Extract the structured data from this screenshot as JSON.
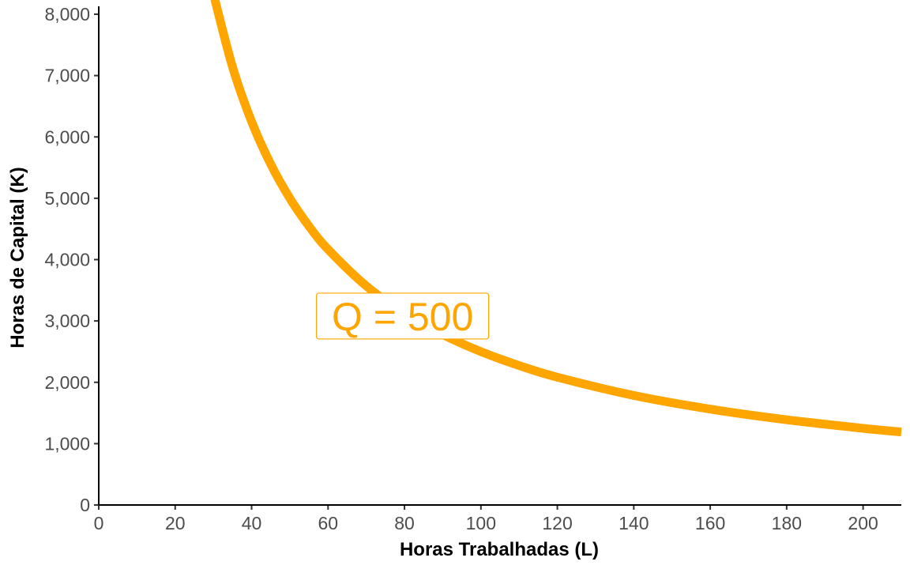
{
  "chart_data": {
    "type": "line",
    "title": "",
    "xlabel": "Horas Trabalhadas (L)",
    "ylabel": "Horas de Capital (K)",
    "xlim": [
      0,
      210
    ],
    "ylim": [
      0,
      8000
    ],
    "x_ticks": [
      0,
      20,
      40,
      60,
      80,
      100,
      120,
      140,
      160,
      180,
      200
    ],
    "x_tick_labels": [
      "0",
      "20",
      "40",
      "60",
      "80",
      "100",
      "120",
      "140",
      "160",
      "180",
      "200"
    ],
    "y_ticks": [
      0,
      1000,
      2000,
      3000,
      4000,
      5000,
      6000,
      7000,
      8000
    ],
    "y_tick_labels": [
      "0",
      "1,000",
      "2,000",
      "3,000",
      "4,000",
      "5,000",
      "6,000",
      "7,000",
      "8,000"
    ],
    "grid": false,
    "legend": "none",
    "color": "#FFA500",
    "series": [
      {
        "x": [
          30,
          35,
          40,
          45,
          50,
          55,
          60,
          70,
          80,
          90,
          100,
          110,
          120,
          140,
          160,
          180,
          200,
          210
        ],
        "y": [
          8333,
          7143,
          6250,
          5556,
          5000,
          4545,
          4167,
          3571,
          3125,
          2778,
          2500,
          2273,
          2083,
          1786,
          1563,
          1389,
          1250,
          1190
        ]
      }
    ],
    "annotations": [
      {
        "text": "Q = 500",
        "x": 79.5,
        "y": 3080
      }
    ]
  }
}
